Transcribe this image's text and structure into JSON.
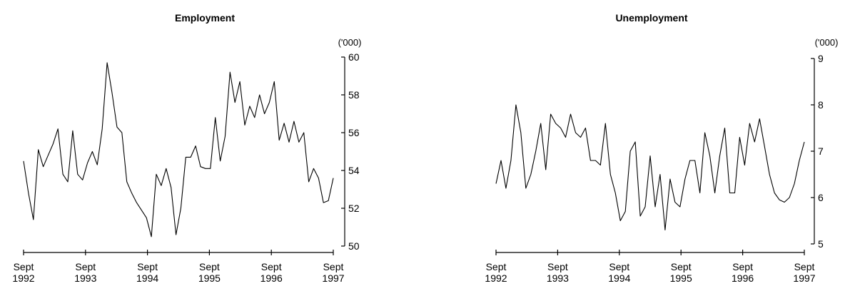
{
  "chart_data": [
    {
      "type": "line",
      "title": "Employment",
      "unit_label": "('000)",
      "y_axis_side": "right",
      "ylim": [
        50,
        60
      ],
      "yticks": [
        50,
        52,
        54,
        56,
        58,
        60
      ],
      "x_tick_labels": [
        [
          "Sept",
          "1992"
        ],
        [
          "Sept",
          "1993"
        ],
        [
          "Sept",
          "1994"
        ],
        [
          "Sept",
          "1995"
        ],
        [
          "Sept",
          "1996"
        ],
        [
          "Sept",
          "1997"
        ]
      ],
      "x_start": "Sept 1992",
      "x_end": "Sept 1997",
      "grid": false,
      "series": [
        {
          "values": [
            54.5,
            52.8,
            51.4,
            55.1,
            54.2,
            54.8,
            55.4,
            56.2,
            53.8,
            53.4,
            56.1,
            53.8,
            53.5,
            54.4,
            55.0,
            54.3,
            56.2,
            59.7,
            58.1,
            56.3,
            56.0,
            53.4,
            52.8,
            52.3,
            51.9,
            51.5,
            50.5,
            53.8,
            53.2,
            54.1,
            53.1,
            50.6,
            52.0,
            54.7,
            54.7,
            55.3,
            54.2,
            54.1,
            54.1,
            56.8,
            54.5,
            55.8,
            59.2,
            57.6,
            58.7,
            56.4,
            57.4,
            56.8,
            58.0,
            57.0,
            57.6,
            58.7,
            55.6,
            56.5,
            55.5,
            56.6,
            55.5,
            56.0,
            53.4,
            54.1,
            53.6,
            52.3,
            52.4,
            53.6
          ]
        }
      ]
    },
    {
      "type": "line",
      "title": "Unemployment",
      "unit_label": "('000)",
      "y_axis_side": "right",
      "ylim": [
        5,
        9
      ],
      "yticks": [
        5,
        6,
        7,
        8,
        9
      ],
      "x_tick_labels": [
        [
          "Sept",
          "1992"
        ],
        [
          "Sept",
          "1993"
        ],
        [
          "Sept",
          "1994"
        ],
        [
          "Sept",
          "1995"
        ],
        [
          "Sept",
          "1996"
        ],
        [
          "Sept",
          "1997"
        ]
      ],
      "x_start": "Sept 1992",
      "x_end": "Sept 1997",
      "grid": false,
      "series": [
        {
          "values": [
            6.3,
            6.8,
            6.2,
            6.8,
            8.0,
            7.4,
            6.2,
            6.5,
            7.0,
            7.6,
            6.6,
            7.8,
            7.6,
            7.5,
            7.3,
            7.8,
            7.4,
            7.3,
            7.5,
            6.8,
            6.8,
            6.7,
            7.6,
            6.5,
            6.1,
            5.5,
            5.7,
            7.0,
            7.2,
            5.6,
            5.8,
            6.9,
            5.8,
            6.5,
            5.3,
            6.4,
            5.9,
            5.8,
            6.4,
            6.8,
            6.8,
            6.1,
            7.4,
            6.9,
            6.1,
            6.9,
            7.5,
            6.1,
            6.1,
            7.3,
            6.7,
            7.6,
            7.2,
            7.7,
            7.1,
            6.5,
            6.1,
            5.95,
            5.9,
            6.0,
            6.3,
            6.8,
            7.2
          ]
        }
      ]
    }
  ]
}
